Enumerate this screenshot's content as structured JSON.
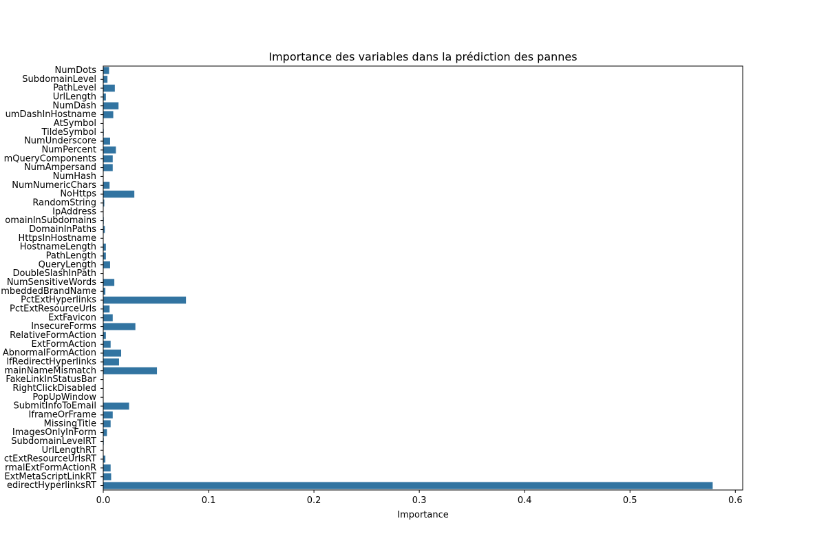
{
  "chart_data": {
    "type": "bar",
    "orientation": "horizontal",
    "title": "Importance des variables dans la prédiction des pannes",
    "xlabel": "Importance",
    "ylabel": "",
    "xlim": [
      0,
      0.607
    ],
    "xticks": [
      0.0,
      0.1,
      0.2,
      0.3,
      0.4,
      0.5,
      0.6
    ],
    "xtick_labels": [
      "0.0",
      "0.1",
      "0.2",
      "0.3",
      "0.4",
      "0.5",
      "0.6"
    ],
    "grid": false,
    "bar_color": "#3274a1",
    "categories": [
      "NumDots",
      "SubdomainLevel",
      "PathLevel",
      "UrlLength",
      "NumDash",
      "umDashInHostname",
      "AtSymbol",
      "TildeSymbol",
      "NumUnderscore",
      "NumPercent",
      "mQueryComponents",
      "NumAmpersand",
      "NumHash",
      "NumNumericChars",
      "NoHttps",
      "RandomString",
      "IpAddress",
      "omainInSubdomains",
      "DomainInPaths",
      "HttpsInHostname",
      "HostnameLength",
      "PathLength",
      "QueryLength",
      "DoubleSlashInPath",
      "NumSensitiveWords",
      "mbeddedBrandName",
      "PctExtHyperlinks",
      "PctExtResourceUrls",
      "ExtFavicon",
      "InsecureForms",
      "RelativeFormAction",
      "ExtFormAction",
      "AbnormalFormAction",
      "lfRedirectHyperlinks",
      "mainNameMismatch",
      "FakeLinkInStatusBar",
      "RightClickDisabled",
      "PopUpWindow",
      "SubmitInfoToEmail",
      "IframeOrFrame",
      "MissingTitle",
      "ImagesOnlyInForm",
      "SubdomainLevelRT",
      "UrlLengthRT",
      "ctExtResourceUrlsRT",
      "rmalExtFormActionR",
      "ExtMetaScriptLinkRT",
      "edirectHyperlinksRT"
    ],
    "values": [
      0.0055,
      0.004,
      0.011,
      0.0025,
      0.0145,
      0.0095,
      0.0,
      0.0005,
      0.0065,
      0.012,
      0.009,
      0.009,
      0.0,
      0.006,
      0.0295,
      0.001,
      0.0,
      0.0005,
      0.0015,
      0.0,
      0.0025,
      0.0025,
      0.0065,
      0.0,
      0.0105,
      0.002,
      0.0785,
      0.006,
      0.009,
      0.0305,
      0.0025,
      0.007,
      0.017,
      0.015,
      0.051,
      0.0,
      0.0,
      0.0,
      0.0245,
      0.009,
      0.007,
      0.0035,
      0.0005,
      0.0,
      0.002,
      0.007,
      0.0075,
      0.5785
    ]
  }
}
